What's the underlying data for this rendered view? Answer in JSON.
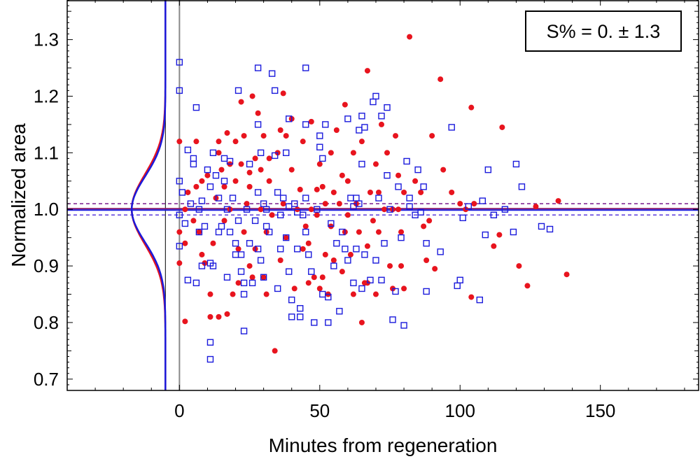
{
  "chart_data": {
    "type": "scatter",
    "title": "",
    "xlabel": "Minutes from regeneration",
    "ylabel": "Normalized area",
    "xlim": [
      -40,
      185
    ],
    "ylim": [
      0.68,
      1.37
    ],
    "x_ticks": [
      0,
      50,
      100,
      150
    ],
    "y_ticks": [
      0.7,
      0.8,
      0.9,
      1.0,
      1.1,
      1.2,
      1.3
    ],
    "y_tick_labels": [
      "0.7",
      "0.8",
      "0.9",
      "1.0",
      "1.1",
      "1.2",
      "1.3"
    ],
    "grid": false,
    "stat_box": {
      "text": "S% = 0. ± 1.3",
      "position": "top-right"
    },
    "reference_lines": {
      "mean": 1.0,
      "band_upper": 1.01,
      "band_lower": 0.99,
      "vertical_at": 0
    },
    "gaussian": {
      "center": 1.0,
      "sigma": 0.06,
      "base_x": -5,
      "peak_x": -17,
      "curves": [
        {
          "name": "red-fit",
          "color": "#e8141e",
          "sigma": 0.062
        },
        {
          "name": "blue-fit",
          "color": "#1a1adc",
          "sigma": 0.058
        }
      ]
    },
    "series": [
      {
        "name": "red-circles",
        "marker": "circle",
        "color": "#e8141e",
        "points": [
          [
            0,
            1.12
          ],
          [
            0,
            0.96
          ],
          [
            0,
            0.905
          ],
          [
            2,
            0.802
          ],
          [
            2,
            0.94
          ],
          [
            2,
            1.0
          ],
          [
            3,
            1.03
          ],
          [
            5,
            0.98
          ],
          [
            6,
            1.04
          ],
          [
            6,
            1.12
          ],
          [
            7,
            0.96
          ],
          [
            8,
            1.05
          ],
          [
            8,
            0.92
          ],
          [
            9,
            0.905
          ],
          [
            10,
            1.06
          ],
          [
            11,
            0.85
          ],
          [
            11,
            0.81
          ],
          [
            12,
            0.94
          ],
          [
            13,
            1.02
          ],
          [
            14,
            1.12
          ],
          [
            14,
            1.1
          ],
          [
            14,
            0.81
          ],
          [
            15,
            1.07
          ],
          [
            16,
            1.04
          ],
          [
            16,
            0.98
          ],
          [
            17,
            1.135
          ],
          [
            17,
            0.815
          ],
          [
            18,
            1.08
          ],
          [
            18,
            1.0
          ],
          [
            19,
            0.85
          ],
          [
            20,
            1.12
          ],
          [
            20,
            1.05
          ],
          [
            21,
            0.93
          ],
          [
            21,
            0.87
          ],
          [
            22,
            1.19
          ],
          [
            22,
            1.08
          ],
          [
            23,
            1.13
          ],
          [
            23,
            0.96
          ],
          [
            24,
            1.01
          ],
          [
            25,
            1.065
          ],
          [
            25,
            1.04
          ],
          [
            25,
            0.9
          ],
          [
            26,
            1.2
          ],
          [
            26,
            0.88
          ],
          [
            27,
            1.09
          ],
          [
            27,
            0.93
          ],
          [
            28,
            1.17
          ],
          [
            29,
            1.07
          ],
          [
            29,
            1.0
          ],
          [
            30,
            1.13
          ],
          [
            30,
            0.88
          ],
          [
            31,
            0.96
          ],
          [
            31,
            0.85
          ],
          [
            32,
            1.09
          ],
          [
            32,
            1.05
          ],
          [
            33,
            0.99
          ],
          [
            34,
            0.75
          ],
          [
            35,
            1.1
          ],
          [
            36,
            0.91
          ],
          [
            36,
            1.14
          ],
          [
            37,
            1.205
          ],
          [
            37,
            1.01
          ],
          [
            38,
            1.13
          ],
          [
            38,
            0.95
          ],
          [
            40,
            1.16
          ],
          [
            40,
            1.07
          ],
          [
            41,
            0.86
          ],
          [
            42,
            1.0
          ],
          [
            43,
            1.035
          ],
          [
            44,
            1.12
          ],
          [
            44,
            0.93
          ],
          [
            45,
            0.97
          ],
          [
            46,
            0.87
          ],
          [
            46,
            0.94
          ],
          [
            47,
            1.155
          ],
          [
            47,
            1.0
          ],
          [
            48,
            0.88
          ],
          [
            49,
            1.035
          ],
          [
            49,
            0.99
          ],
          [
            50,
            1.08
          ],
          [
            50,
            0.86
          ],
          [
            51,
            1.04
          ],
          [
            51,
            0.88
          ],
          [
            52,
            1.01
          ],
          [
            52,
            0.92
          ],
          [
            53,
            0.85
          ],
          [
            54,
            1.1
          ],
          [
            54,
            0.97
          ],
          [
            55,
            1.03
          ],
          [
            55,
            0.91
          ],
          [
            56,
            1.14
          ],
          [
            57,
            1.01
          ],
          [
            58,
            0.89
          ],
          [
            58,
            1.06
          ],
          [
            59,
            1.185
          ],
          [
            59,
            0.96
          ],
          [
            60,
            1.05
          ],
          [
            60,
            0.99
          ],
          [
            61,
            0.92
          ],
          [
            62,
            1.1
          ],
          [
            62,
            0.85
          ],
          [
            63,
            1.01
          ],
          [
            64,
            0.96
          ],
          [
            65,
            0.8
          ],
          [
            65,
            1.12
          ],
          [
            66,
            0.87
          ],
          [
            67,
            1.245
          ],
          [
            67,
            0.935
          ],
          [
            67,
            0.87
          ],
          [
            68,
            1.03
          ],
          [
            69,
            0.98
          ],
          [
            70,
            1.08
          ],
          [
            70,
            0.85
          ],
          [
            71,
            1.03
          ],
          [
            71,
            0.96
          ],
          [
            72,
            1.15
          ],
          [
            73,
            1.0
          ],
          [
            74,
            1.1
          ],
          [
            75,
            0.9
          ],
          [
            76,
            0.86
          ],
          [
            76,
            1.0
          ],
          [
            77,
            1.13
          ],
          [
            78,
            1.06
          ],
          [
            78,
            1.0
          ],
          [
            79,
            0.96
          ],
          [
            79,
            0.9
          ],
          [
            80,
            1.03
          ],
          [
            80,
            0.86
          ],
          [
            82,
            1.305
          ],
          [
            84,
            1.05
          ],
          [
            86,
            1.03
          ],
          [
            87,
            0.97
          ],
          [
            88,
            0.91
          ],
          [
            89,
            0.98
          ],
          [
            90,
            1.13
          ],
          [
            91,
            0.895
          ],
          [
            93,
            1.23
          ],
          [
            94,
            1.07
          ],
          [
            97,
            1.03
          ],
          [
            100,
            1.01
          ],
          [
            102,
            1.0
          ],
          [
            104,
            0.845
          ],
          [
            104,
            1.18
          ],
          [
            105,
            1.01
          ],
          [
            112,
            0.935
          ],
          [
            114,
            0.955
          ],
          [
            115,
            1.145
          ],
          [
            121,
            0.9
          ],
          [
            124,
            0.865
          ],
          [
            127,
            1.005
          ],
          [
            135,
            1.015
          ],
          [
            138,
            0.885
          ]
        ]
      },
      {
        "name": "blue-squares",
        "marker": "square",
        "color": "#1a1adc",
        "points": [
          [
            0,
            1.26
          ],
          [
            0,
            1.21
          ],
          [
            0,
            1.05
          ],
          [
            0,
            0.99
          ],
          [
            0,
            0.935
          ],
          [
            1,
            1.03
          ],
          [
            2,
            0.975
          ],
          [
            3,
            1.105
          ],
          [
            3,
            0.875
          ],
          [
            4,
            1.01
          ],
          [
            5,
            1.09
          ],
          [
            5,
            1.08
          ],
          [
            6,
            1.18
          ],
          [
            6,
            0.87
          ],
          [
            7,
            1.0
          ],
          [
            7,
            0.96
          ],
          [
            8,
            1.015
          ],
          [
            8,
            0.9
          ],
          [
            9,
            0.97
          ],
          [
            10,
            1.07
          ],
          [
            11,
            1.04
          ],
          [
            11,
            0.905
          ],
          [
            11,
            0.765
          ],
          [
            11,
            0.735
          ],
          [
            12,
            1.1
          ],
          [
            12,
            0.9
          ],
          [
            13,
            1.06
          ],
          [
            14,
            1.02
          ],
          [
            14,
            0.96
          ],
          [
            15,
            0.97
          ],
          [
            16,
            1.09
          ],
          [
            16,
            1.05
          ],
          [
            17,
            1.0
          ],
          [
            17,
            0.88
          ],
          [
            18,
            0.96
          ],
          [
            18,
            1.085
          ],
          [
            19,
            1.02
          ],
          [
            20,
            0.94
          ],
          [
            20,
            0.92
          ],
          [
            21,
            1.21
          ],
          [
            21,
            0.98
          ],
          [
            22,
            0.92
          ],
          [
            22,
            0.89
          ],
          [
            23,
            0.87
          ],
          [
            23,
            0.85
          ],
          [
            23,
            0.785
          ],
          [
            24,
            1.0
          ],
          [
            25,
            1.08
          ],
          [
            25,
            0.94
          ],
          [
            26,
            0.87
          ],
          [
            27,
            0.98
          ],
          [
            28,
            1.25
          ],
          [
            28,
            1.15
          ],
          [
            28,
            1.03
          ],
          [
            28,
            0.93
          ],
          [
            29,
            1.1
          ],
          [
            29,
            0.91
          ],
          [
            30,
            1.01
          ],
          [
            30,
            0.88
          ],
          [
            31,
            1.0
          ],
          [
            31,
            0.97
          ],
          [
            32,
            0.96
          ],
          [
            33,
            1.24
          ],
          [
            34,
            1.21
          ],
          [
            34,
            1.095
          ],
          [
            35,
            1.03
          ],
          [
            35,
            0.86
          ],
          [
            36,
            0.99
          ],
          [
            36,
            0.93
          ],
          [
            37,
            1.02
          ],
          [
            38,
            1.1
          ],
          [
            38,
            0.95
          ],
          [
            39,
            1.16
          ],
          [
            39,
            1.005
          ],
          [
            39,
            0.89
          ],
          [
            40,
            0.84
          ],
          [
            40,
            0.81
          ],
          [
            41,
            1.01
          ],
          [
            42,
            0.995
          ],
          [
            42,
            0.93
          ],
          [
            43,
            0.81
          ],
          [
            43,
            0.825
          ],
          [
            44,
            0.99
          ],
          [
            45,
            1.25
          ],
          [
            45,
            1.15
          ],
          [
            45,
            1.02
          ],
          [
            45,
            0.96
          ],
          [
            46,
            0.92
          ],
          [
            47,
            0.89
          ],
          [
            48,
            0.8
          ],
          [
            49,
            1.0
          ],
          [
            50,
            1.13
          ],
          [
            50,
            1.11
          ],
          [
            51,
            1.09
          ],
          [
            51,
            0.85
          ],
          [
            52,
            1.15
          ],
          [
            53,
            0.845
          ],
          [
            53,
            0.8
          ],
          [
            54,
            0.975
          ],
          [
            55,
            0.9
          ],
          [
            56,
            0.94
          ],
          [
            57,
            0.82
          ],
          [
            58,
            0.96
          ],
          [
            59,
            0.93
          ],
          [
            60,
            1.16
          ],
          [
            60,
            0.91
          ],
          [
            61,
            1.02
          ],
          [
            62,
            1.005
          ],
          [
            62,
            0.87
          ],
          [
            63,
            1.02
          ],
          [
            63,
            0.93
          ],
          [
            64,
            1.14
          ],
          [
            64,
            1.01
          ],
          [
            65,
            1.165
          ],
          [
            65,
            1.08
          ],
          [
            65,
            0.86
          ],
          [
            66,
            1.145
          ],
          [
            66,
            0.92
          ],
          [
            68,
            0.875
          ],
          [
            69,
            1.19
          ],
          [
            70,
            1.2
          ],
          [
            70,
            0.91
          ],
          [
            71,
            1.02
          ],
          [
            72,
            1.165
          ],
          [
            72,
            0.875
          ],
          [
            73,
            0.94
          ],
          [
            74,
            1.18
          ],
          [
            74,
            1.06
          ],
          [
            75,
            1.0
          ],
          [
            76,
            0.805
          ],
          [
            77,
            0.855
          ],
          [
            78,
            1.04
          ],
          [
            79,
            0.95
          ],
          [
            80,
            0.795
          ],
          [
            81,
            1.085
          ],
          [
            82,
            1.02
          ],
          [
            82,
            1.005
          ],
          [
            84,
            0.99
          ],
          [
            85,
            1.07
          ],
          [
            86,
            0.995
          ],
          [
            87,
            1.04
          ],
          [
            88,
            0.94
          ],
          [
            88,
            0.855
          ],
          [
            93,
            0.925
          ],
          [
            97,
            1.145
          ],
          [
            100,
            0.875
          ],
          [
            101,
            0.985
          ],
          [
            103,
            1.005
          ],
          [
            108,
            1.015
          ],
          [
            109,
            0.955
          ],
          [
            110,
            1.07
          ],
          [
            112,
            0.99
          ],
          [
            116,
            1.0
          ],
          [
            119,
            0.96
          ],
          [
            120,
            1.08
          ],
          [
            122,
            1.04
          ],
          [
            129,
            0.97
          ],
          [
            132,
            0.965
          ],
          [
            107,
            0.84
          ],
          [
            99,
            0.865
          ]
        ]
      }
    ]
  }
}
